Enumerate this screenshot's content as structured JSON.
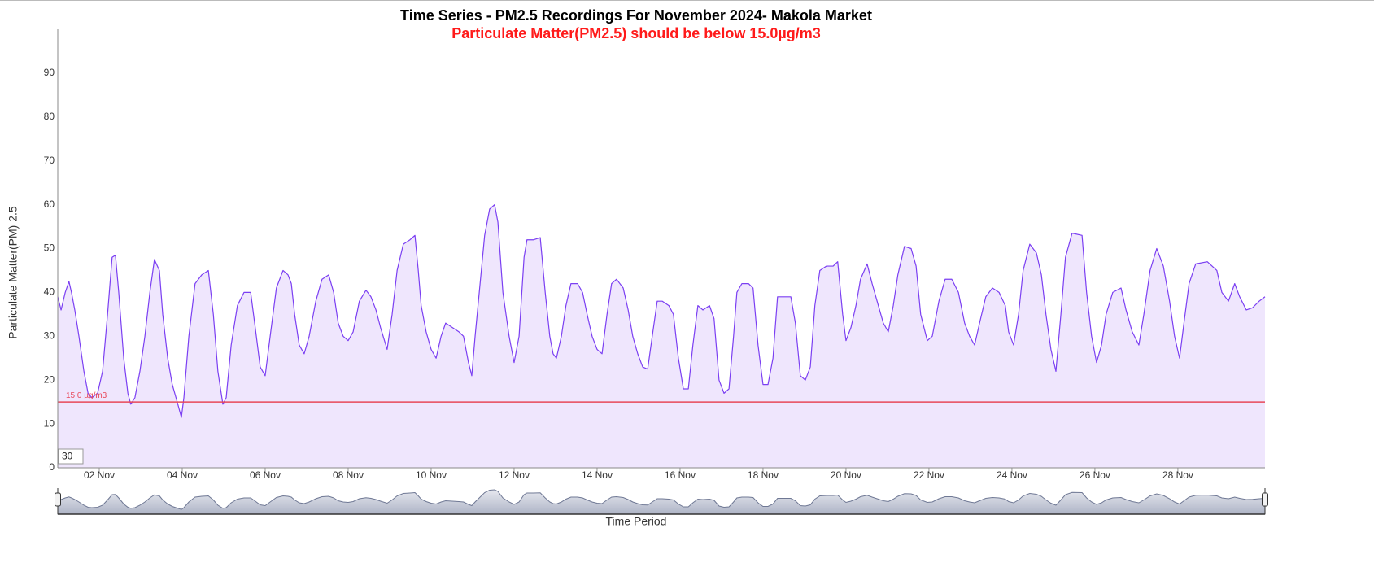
{
  "chart_data": {
    "type": "line",
    "title": "Time Series - PM2.5 Recordings For November 2024- Makola Market",
    "subtitle": "Particulate Matter(PM2.5) should be below 15.0µg/m3",
    "y_label": "Particulate Matter(PM) 2.5",
    "x_label": "Time Period",
    "input_value": "30",
    "threshold": {
      "value": 15,
      "label": "15.0 µg/m3",
      "color": "#e8485a"
    },
    "xlim": [
      1,
      30.1
    ],
    "xticks": [
      {
        "value": 2,
        "label": "02 Nov"
      },
      {
        "value": 4,
        "label": "04 Nov"
      },
      {
        "value": 6,
        "label": "06 Nov"
      },
      {
        "value": 8,
        "label": "08 Nov"
      },
      {
        "value": 10,
        "label": "10 Nov"
      },
      {
        "value": 12,
        "label": "12 Nov"
      },
      {
        "value": 14,
        "label": "14 Nov"
      },
      {
        "value": 16,
        "label": "16 Nov"
      },
      {
        "value": 18,
        "label": "18 Nov"
      },
      {
        "value": 20,
        "label": "20 Nov"
      },
      {
        "value": 22,
        "label": "22 Nov"
      },
      {
        "value": 24,
        "label": "24 Nov"
      },
      {
        "value": 26,
        "label": "26 Nov"
      },
      {
        "value": 28,
        "label": "28 Nov"
      }
    ],
    "ylim": [
      0,
      100
    ],
    "yticks": [
      0,
      10,
      20,
      30,
      40,
      50,
      60,
      70,
      80,
      90
    ],
    "color": "#7b3ff2",
    "fill": "#efe6fd",
    "x": [
      1.0,
      1.08,
      1.18,
      1.27,
      1.33,
      1.41,
      1.51,
      1.63,
      1.73,
      1.82,
      1.96,
      2.08,
      2.2,
      2.31,
      2.39,
      2.47,
      2.59,
      2.69,
      2.76,
      2.86,
      2.98,
      3.1,
      3.22,
      3.33,
      3.45,
      3.53,
      3.65,
      3.76,
      3.88,
      3.98,
      4.04,
      4.16,
      4.31,
      4.47,
      4.63,
      4.75,
      4.86,
      4.98,
      5.06,
      5.18,
      5.33,
      5.49,
      5.65,
      5.76,
      5.88,
      6.0,
      6.12,
      6.27,
      6.43,
      6.55,
      6.63,
      6.71,
      6.82,
      6.94,
      7.06,
      7.22,
      7.37,
      7.53,
      7.65,
      7.76,
      7.88,
      8.0,
      8.12,
      8.27,
      8.43,
      8.55,
      8.67,
      8.78,
      8.94,
      9.06,
      9.18,
      9.33,
      9.49,
      9.61,
      9.69,
      9.76,
      9.88,
      10.0,
      10.12,
      10.24,
      10.35,
      10.51,
      10.67,
      10.78,
      10.9,
      10.98,
      11.06,
      11.18,
      11.29,
      11.41,
      11.53,
      11.61,
      11.73,
      11.88,
      12.0,
      12.12,
      12.24,
      12.31,
      12.47,
      12.63,
      12.75,
      12.86,
      12.94,
      13.02,
      13.14,
      13.25,
      13.37,
      13.53,
      13.65,
      13.76,
      13.88,
      14.0,
      14.12,
      14.24,
      14.35,
      14.47,
      14.63,
      14.75,
      14.86,
      14.98,
      15.1,
      15.22,
      15.33,
      15.45,
      15.57,
      15.73,
      15.84,
      15.96,
      16.08,
      16.2,
      16.31,
      16.43,
      16.55,
      16.71,
      16.82,
      16.94,
      17.06,
      17.18,
      17.29,
      17.37,
      17.49,
      17.65,
      17.76,
      17.88,
      18.0,
      18.12,
      18.24,
      18.35,
      18.51,
      18.67,
      18.78,
      18.9,
      19.02,
      19.14,
      19.25,
      19.37,
      19.53,
      19.69,
      19.8,
      19.92,
      20.0,
      20.12,
      20.24,
      20.35,
      20.51,
      20.63,
      20.75,
      20.9,
      21.02,
      21.14,
      21.25,
      21.41,
      21.57,
      21.69,
      21.8,
      21.96,
      22.08,
      22.24,
      22.39,
      22.55,
      22.71,
      22.86,
      22.98,
      23.1,
      23.22,
      23.37,
      23.53,
      23.69,
      23.84,
      23.92,
      24.04,
      24.16,
      24.27,
      24.43,
      24.59,
      24.71,
      24.82,
      24.94,
      25.06,
      25.18,
      25.29,
      25.45,
      25.69,
      25.8,
      25.92,
      26.04,
      26.16,
      26.27,
      26.43,
      26.63,
      26.75,
      26.9,
      27.06,
      27.18,
      27.33,
      27.49,
      27.65,
      27.8,
      27.92,
      28.04,
      28.16,
      28.27,
      28.43,
      28.71,
      28.94,
      29.06,
      29.22,
      29.37,
      29.49,
      29.65,
      29.8,
      29.96,
      30.1
    ],
    "values": [
      39,
      36,
      40,
      42.5,
      40,
      36,
      30,
      22,
      17,
      16,
      17,
      22,
      35,
      48,
      48.5,
      40,
      25,
      17,
      14.5,
      16,
      22,
      30,
      40,
      47.5,
      45,
      35,
      25,
      19,
      15,
      11.5,
      16,
      30,
      42,
      44,
      45,
      35,
      22,
      14.5,
      16,
      28,
      37,
      40,
      40,
      32,
      23,
      21,
      30,
      41,
      45,
      44,
      42,
      35,
      28,
      26,
      30,
      38,
      43,
      44,
      40,
      33,
      30,
      29,
      31,
      38,
      40.5,
      39,
      36,
      32,
      27,
      35,
      45,
      51,
      52,
      53,
      45,
      37,
      31,
      27,
      25,
      30,
      33,
      32,
      31,
      30,
      24,
      21,
      30,
      42,
      53,
      59,
      60,
      56,
      40,
      30,
      24,
      30,
      48,
      52,
      52,
      52.5,
      40,
      30,
      26,
      25,
      30,
      37,
      42,
      42,
      40,
      35,
      30,
      27,
      26,
      35,
      42,
      43,
      41,
      36,
      30,
      26,
      23,
      22.5,
      30,
      38,
      38,
      37,
      35,
      25,
      18,
      18,
      28,
      37,
      36,
      37,
      34,
      20,
      17,
      18,
      30,
      40,
      42,
      42,
      41,
      28,
      19,
      19,
      25,
      39,
      39,
      39,
      33,
      21,
      20,
      23,
      37,
      45,
      46,
      46,
      47,
      35,
      29,
      32,
      37,
      43,
      46.5,
      42,
      38,
      33,
      31,
      37,
      44,
      50.5,
      50,
      46,
      35,
      29,
      30,
      38,
      43,
      43,
      40,
      33,
      30,
      28,
      33,
      39,
      41,
      40,
      37,
      31,
      28,
      35,
      45,
      51,
      49,
      44,
      35,
      27,
      22,
      35,
      48,
      53.5,
      53,
      40,
      30,
      24,
      28,
      35,
      40,
      41,
      36,
      31,
      28,
      35,
      45,
      50,
      46,
      38,
      30,
      25,
      34,
      42,
      46.5,
      47,
      45,
      40,
      38,
      42,
      39,
      36,
      36.5,
      38,
      39
    ]
  }
}
